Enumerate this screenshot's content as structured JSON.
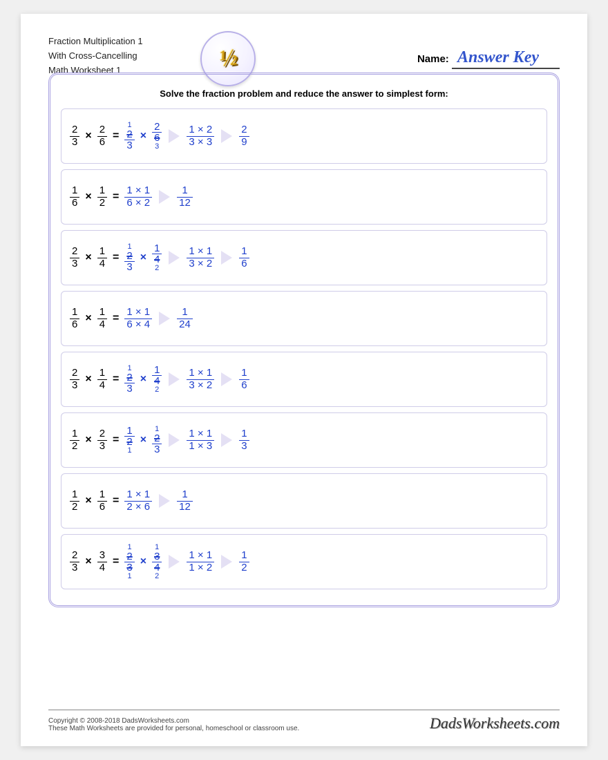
{
  "colors": {
    "problem_text": "#000000",
    "answer_text": "#2040cc",
    "border": "#a8a0e0",
    "row_border": "#cfcce8",
    "arrow_fill": "#e4e0f4"
  },
  "header": {
    "title_line1": "Fraction Multiplication 1",
    "title_line2": "With Cross-Cancelling",
    "title_line3": "Math Worksheet 1",
    "icon_text": "½",
    "name_label": "Name:",
    "answer_key": "Answer Key"
  },
  "instruction": "Solve the fraction problem and reduce the answer to simplest form:",
  "footer": {
    "copyright": "Copyright © 2008-2018 DadsWorksheets.com",
    "note": "These Math Worksheets are provided for personal, homeschool or classroom use.",
    "brand": "DadsWorksheets.com"
  },
  "problems": [
    {
      "a": {
        "n": "2",
        "d": "3"
      },
      "b": {
        "n": "2",
        "d": "6"
      },
      "cancel": {
        "a": {
          "n": "2",
          "nr": "1",
          "d": "3"
        },
        "b": {
          "n": "2",
          "d": "6",
          "dr": "3"
        }
      },
      "mult": {
        "n": "1 × 2",
        "d": "3 × 3"
      },
      "ans": {
        "n": "2",
        "d": "9"
      }
    },
    {
      "a": {
        "n": "1",
        "d": "6"
      },
      "b": {
        "n": "1",
        "d": "2"
      },
      "mult": {
        "n": "1 × 1",
        "d": "6 × 2"
      },
      "ans": {
        "n": "1",
        "d": "12"
      }
    },
    {
      "a": {
        "n": "2",
        "d": "3"
      },
      "b": {
        "n": "1",
        "d": "4"
      },
      "cancel": {
        "a": {
          "n": "2",
          "nr": "1",
          "d": "3"
        },
        "b": {
          "n": "1",
          "d": "4",
          "dr": "2"
        }
      },
      "mult": {
        "n": "1 × 1",
        "d": "3 × 2"
      },
      "ans": {
        "n": "1",
        "d": "6"
      }
    },
    {
      "a": {
        "n": "1",
        "d": "6"
      },
      "b": {
        "n": "1",
        "d": "4"
      },
      "mult": {
        "n": "1 × 1",
        "d": "6 × 4"
      },
      "ans": {
        "n": "1",
        "d": "24"
      }
    },
    {
      "a": {
        "n": "2",
        "d": "3"
      },
      "b": {
        "n": "1",
        "d": "4"
      },
      "cancel": {
        "a": {
          "n": "2",
          "nr": "1",
          "d": "3"
        },
        "b": {
          "n": "1",
          "d": "4",
          "dr": "2"
        }
      },
      "mult": {
        "n": "1 × 1",
        "d": "3 × 2"
      },
      "ans": {
        "n": "1",
        "d": "6"
      }
    },
    {
      "a": {
        "n": "1",
        "d": "2"
      },
      "b": {
        "n": "2",
        "d": "3"
      },
      "cancel": {
        "a": {
          "n": "1",
          "d": "2",
          "dr": "1"
        },
        "b": {
          "n": "2",
          "nr": "1",
          "d": "3"
        }
      },
      "mult": {
        "n": "1 × 1",
        "d": "1 × 3"
      },
      "ans": {
        "n": "1",
        "d": "3"
      }
    },
    {
      "a": {
        "n": "1",
        "d": "2"
      },
      "b": {
        "n": "1",
        "d": "6"
      },
      "mult": {
        "n": "1 × 1",
        "d": "2 × 6"
      },
      "ans": {
        "n": "1",
        "d": "12"
      }
    },
    {
      "a": {
        "n": "2",
        "d": "3"
      },
      "b": {
        "n": "3",
        "d": "4"
      },
      "cancel": {
        "a": {
          "n": "2",
          "nr": "1",
          "d": "3",
          "dr": "1"
        },
        "b": {
          "n": "3",
          "nr": "1",
          "d": "4",
          "dr": "2"
        }
      },
      "mult": {
        "n": "1 × 1",
        "d": "1 × 2"
      },
      "ans": {
        "n": "1",
        "d": "2"
      }
    }
  ]
}
